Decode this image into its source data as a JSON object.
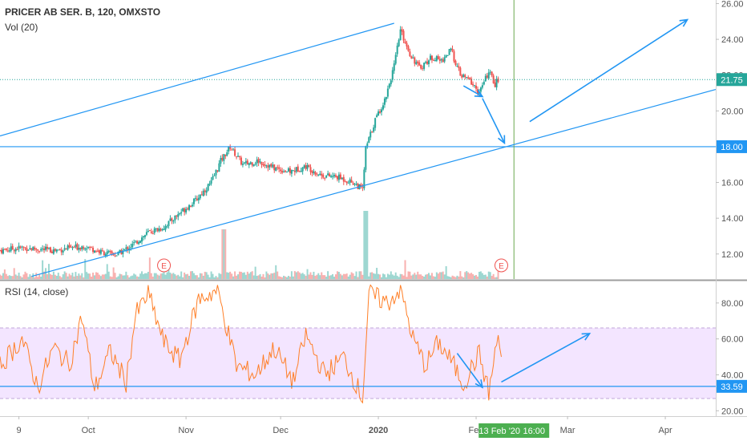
{
  "header": {
    "symbol_line": "PRICER AB SER. B, 120, OMXSTO",
    "volume_label": "Vol (20)",
    "rsi_label": "RSI (14, close)"
  },
  "colors": {
    "up": "#26a69a",
    "down": "#ef5350",
    "trend": "#2196f3",
    "rsi_line": "#ff7f27",
    "rsi_band": "#f3e5ff",
    "last_price_bg": "#26a69a",
    "level_bg": "#2196f3",
    "marker_bg": "#4caf50",
    "earnings": "#ef5350"
  },
  "labels": {
    "last_price": "21.75",
    "level_price": "18.00",
    "rsi_value": "33.59",
    "cursor_date": "13 Feb '20",
    "cursor_time": "16:00",
    "earnings_marker": "E"
  },
  "chart_data": {
    "type": "candlestick",
    "price_axis": {
      "ticks": [
        "12.00",
        "14.00",
        "16.00",
        "18.00",
        "20.00",
        "22.00",
        "24.00",
        "26.00"
      ],
      "range": [
        10.6,
        26.2
      ]
    },
    "rsi_axis": {
      "ticks": [
        "20.00",
        "40.00",
        "60.00",
        "80.00"
      ],
      "range": [
        17,
        92
      ],
      "band": [
        30,
        70
      ]
    },
    "time_axis": {
      "ticks": [
        "9",
        "Oct",
        "Nov",
        "Dec",
        "2020",
        "Feb",
        "Mar",
        "Apr"
      ],
      "tick_days": [
        9,
        31,
        62,
        92,
        123,
        154,
        183,
        214
      ],
      "range_days": [
        3,
        230
      ]
    },
    "horizontal_levels": [
      21.75,
      18.0
    ],
    "cursor_day": 166,
    "earnings_days": [
      55,
      162
    ],
    "price_path": [
      {
        "day": 3,
        "price": 12.2
      },
      {
        "day": 10,
        "price": 12.35
      },
      {
        "day": 20,
        "price": 12.2
      },
      {
        "day": 30,
        "price": 12.45
      },
      {
        "day": 35,
        "price": 12.1
      },
      {
        "day": 40,
        "price": 11.95
      },
      {
        "day": 45,
        "price": 12.5
      },
      {
        "day": 50,
        "price": 13.2
      },
      {
        "day": 55,
        "price": 13.5
      },
      {
        "day": 60,
        "price": 14.3
      },
      {
        "day": 65,
        "price": 15.0
      },
      {
        "day": 70,
        "price": 16.0
      },
      {
        "day": 73,
        "price": 17.2
      },
      {
        "day": 76,
        "price": 18.0
      },
      {
        "day": 80,
        "price": 17.0
      },
      {
        "day": 85,
        "price": 17.2
      },
      {
        "day": 90,
        "price": 16.8
      },
      {
        "day": 95,
        "price": 16.6
      },
      {
        "day": 100,
        "price": 16.9
      },
      {
        "day": 105,
        "price": 16.4
      },
      {
        "day": 110,
        "price": 16.3
      },
      {
        "day": 115,
        "price": 16.0
      },
      {
        "day": 118,
        "price": 15.6
      },
      {
        "day": 119,
        "price": 17.9
      },
      {
        "day": 122,
        "price": 19.5
      },
      {
        "day": 125,
        "price": 20.6
      },
      {
        "day": 128,
        "price": 22.5
      },
      {
        "day": 130,
        "price": 24.5
      },
      {
        "day": 133,
        "price": 23.2
      },
      {
        "day": 136,
        "price": 22.4
      },
      {
        "day": 140,
        "price": 23.0
      },
      {
        "day": 143,
        "price": 22.8
      },
      {
        "day": 146,
        "price": 23.4
      },
      {
        "day": 149,
        "price": 22.0
      },
      {
        "day": 152,
        "price": 21.7
      },
      {
        "day": 155,
        "price": 21.0
      },
      {
        "day": 158,
        "price": 22.2
      },
      {
        "day": 160,
        "price": 21.5
      },
      {
        "day": 161,
        "price": 21.75
      }
    ],
    "rsi_path": [
      {
        "day": 3,
        "value": 45
      },
      {
        "day": 10,
        "value": 60
      },
      {
        "day": 15,
        "value": 33
      },
      {
        "day": 20,
        "value": 55
      },
      {
        "day": 25,
        "value": 46
      },
      {
        "day": 29,
        "value": 72
      },
      {
        "day": 33,
        "value": 32
      },
      {
        "day": 38,
        "value": 53
      },
      {
        "day": 43,
        "value": 36
      },
      {
        "day": 46,
        "value": 73
      },
      {
        "day": 50,
        "value": 85
      },
      {
        "day": 55,
        "value": 58
      },
      {
        "day": 60,
        "value": 48
      },
      {
        "day": 66,
        "value": 82
      },
      {
        "day": 72,
        "value": 87
      },
      {
        "day": 78,
        "value": 45
      },
      {
        "day": 84,
        "value": 40
      },
      {
        "day": 90,
        "value": 55
      },
      {
        "day": 96,
        "value": 36
      },
      {
        "day": 100,
        "value": 62
      },
      {
        "day": 106,
        "value": 40
      },
      {
        "day": 112,
        "value": 50
      },
      {
        "day": 118,
        "value": 27
      },
      {
        "day": 120,
        "value": 85
      },
      {
        "day": 126,
        "value": 80
      },
      {
        "day": 130,
        "value": 88
      },
      {
        "day": 134,
        "value": 60
      },
      {
        "day": 138,
        "value": 45
      },
      {
        "day": 142,
        "value": 58
      },
      {
        "day": 146,
        "value": 48
      },
      {
        "day": 150,
        "value": 35
      },
      {
        "day": 155,
        "value": 52
      },
      {
        "day": 158,
        "value": 30
      },
      {
        "day": 161,
        "value": 62
      },
      {
        "day": 162,
        "value": 50
      }
    ],
    "trendlines": [
      {
        "start": {
          "day": 3,
          "price": 18.6
        },
        "end": {
          "day": 128,
          "price": 24.9
        }
      },
      {
        "start": {
          "day": 13,
          "price": 10.75
        },
        "end": {
          "day": 230,
          "price": 21.2
        }
      }
    ],
    "price_arrows": [
      {
        "start": {
          "day": 150,
          "price": 21.4
        },
        "end": {
          "day": 156,
          "price": 20.8
        }
      },
      {
        "start": {
          "day": 156,
          "price": 20.7
        },
        "end": {
          "day": 163,
          "price": 18.2
        }
      },
      {
        "start": {
          "day": 171,
          "price": 19.4
        },
        "end": {
          "day": 221,
          "price": 25.1
        }
      }
    ],
    "rsi_arrows": [
      {
        "start": {
          "day": 148,
          "value": 52
        },
        "end": {
          "day": 156,
          "value": 33
        }
      },
      {
        "start": {
          "day": 162,
          "value": 36
        },
        "end": {
          "day": 190,
          "value": 63
        }
      }
    ]
  }
}
